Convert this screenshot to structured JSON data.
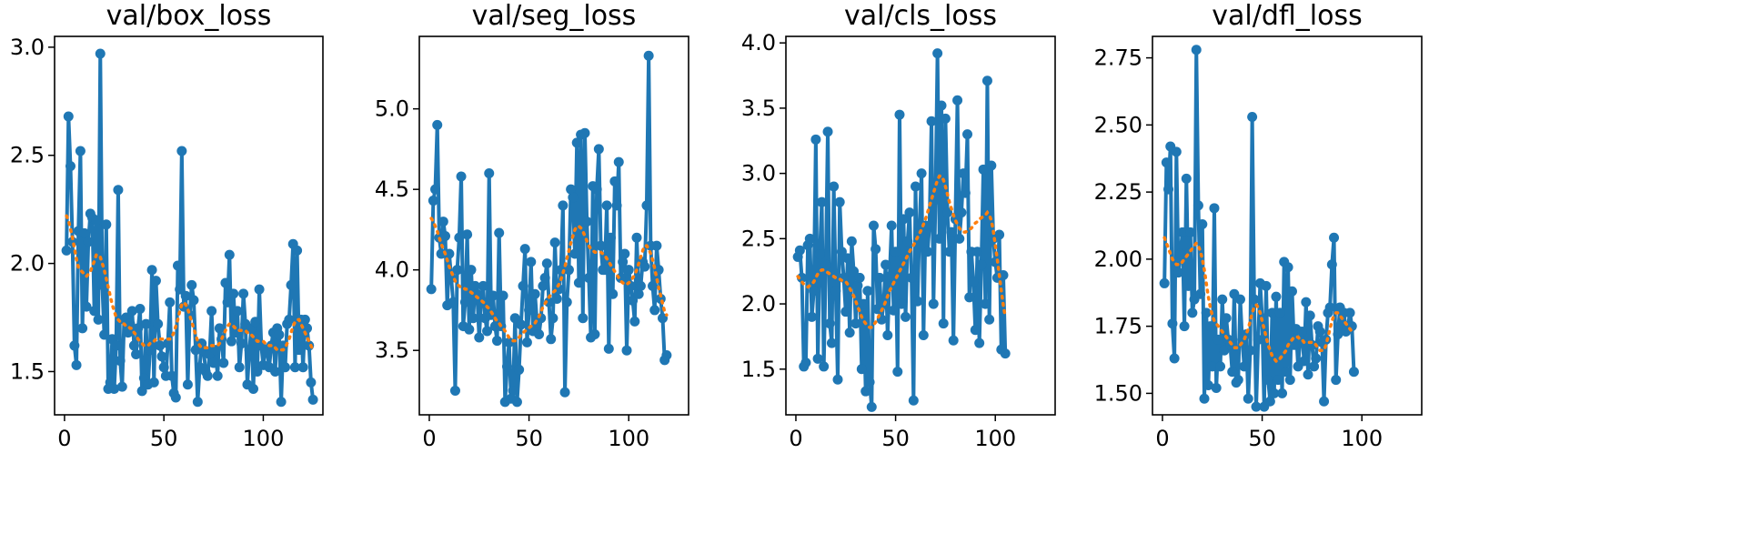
{
  "colors": {
    "series": "#1f77b4",
    "smooth": "#ff7f0e",
    "axis": "#000000"
  },
  "chart_data": [
    {
      "type": "line",
      "title": "val/box_loss",
      "xlim": [
        -5,
        130
      ],
      "ylim": [
        1.3,
        3.05
      ],
      "xticks": [
        0,
        50,
        100
      ],
      "yticks": [
        1.5,
        2.0,
        2.5,
        3.0
      ],
      "ytick_labels": [
        "1.5",
        "2.0",
        "2.5",
        "3.0"
      ],
      "series": [
        {
          "name": "results",
          "marker": "o",
          "values": [
            2.06,
            2.68,
            2.45,
            2.1,
            1.62,
            1.53,
            2.15,
            2.52,
            1.7,
            2.14,
            1.8,
            2.1,
            2.23,
            2.21,
            1.78,
            2.2,
            1.74,
            2.97,
            1.9,
            1.67,
            2.18,
            1.42,
            1.45,
            1.65,
            1.42,
            1.62,
            2.34,
            1.55,
            1.43,
            1.74,
            1.75,
            1.68,
            1.72,
            1.78,
            1.62,
            1.58,
            1.7,
            1.79,
            1.41,
            1.47,
            1.72,
            1.44,
            1.6,
            1.97,
            1.45,
            1.92,
            1.72,
            1.62,
            1.57,
            1.52,
            1.48,
            1.63,
            1.82,
            1.48,
            1.4,
            1.38,
            1.99,
            1.88,
            2.52,
            1.8,
            1.85,
            1.44,
            1.76,
            1.9,
            1.83,
            1.6,
            1.36,
            1.52,
            1.63,
            1.6,
            1.5,
            1.48,
            1.58,
            1.78,
            1.54,
            1.6,
            1.48,
            1.7,
            1.65,
            1.54,
            1.91,
            1.82,
            2.04,
            1.64,
            1.86,
            1.68,
            1.78,
            1.52,
            1.63,
            1.86,
            1.72,
            1.44,
            1.6,
            1.7,
            1.42,
            1.73,
            1.5,
            1.88,
            1.62,
            1.53,
            1.6,
            1.59,
            1.52,
            1.62,
            1.68,
            1.5,
            1.7,
            1.67,
            1.36,
            1.62,
            1.52,
            1.72,
            1.74,
            1.9,
            2.09,
            1.52,
            2.06,
            1.6,
            1.74,
            1.52,
            1.74,
            1.7,
            1.62,
            1.45,
            1.37
          ]
        },
        {
          "name": "smooth",
          "style": "dotted",
          "values": [
            2.22,
            2.2,
            2.16,
            2.12,
            2.07,
            2.02,
            1.98,
            1.97,
            1.96,
            1.95,
            1.94,
            1.95,
            1.96,
            1.99,
            2.01,
            2.04,
            2.04,
            2.03,
            2.0,
            1.97,
            1.93,
            1.89,
            1.85,
            1.81,
            1.78,
            1.75,
            1.74,
            1.73,
            1.72,
            1.72,
            1.71,
            1.71,
            1.7,
            1.7,
            1.68,
            1.67,
            1.65,
            1.64,
            1.63,
            1.62,
            1.62,
            1.62,
            1.63,
            1.64,
            1.64,
            1.65,
            1.65,
            1.65,
            1.65,
            1.65,
            1.65,
            1.65,
            1.65,
            1.66,
            1.68,
            1.71,
            1.74,
            1.78,
            1.81,
            1.82,
            1.81,
            1.79,
            1.76,
            1.73,
            1.7,
            1.67,
            1.64,
            1.62,
            1.61,
            1.61,
            1.61,
            1.61,
            1.61,
            1.62,
            1.62,
            1.62,
            1.62,
            1.63,
            1.65,
            1.67,
            1.69,
            1.71,
            1.72,
            1.72,
            1.71,
            1.7,
            1.7,
            1.69,
            1.69,
            1.69,
            1.69,
            1.68,
            1.68,
            1.67,
            1.66,
            1.65,
            1.64,
            1.64,
            1.64,
            1.64,
            1.63,
            1.63,
            1.62,
            1.62,
            1.61,
            1.61,
            1.6,
            1.6,
            1.6,
            1.6,
            1.61,
            1.63,
            1.65,
            1.68,
            1.71,
            1.73,
            1.74,
            1.74,
            1.72,
            1.7,
            1.68,
            1.66,
            1.64,
            1.62,
            1.6
          ]
        }
      ]
    },
    {
      "type": "line",
      "title": "val/seg_loss",
      "xlim": [
        -5,
        130
      ],
      "ylim": [
        3.1,
        5.45
      ],
      "xticks": [
        0,
        50,
        100
      ],
      "yticks": [
        3.5,
        4.0,
        4.5,
        5.0
      ],
      "ytick_labels": [
        "3.5",
        "4.0",
        "4.5",
        "5.0"
      ],
      "series": [
        {
          "name": "results",
          "marker": "o",
          "values": [
            3.88,
            4.43,
            4.5,
            4.9,
            4.2,
            4.1,
            4.3,
            4.21,
            3.78,
            4.1,
            3.95,
            3.8,
            3.25,
            4.0,
            4.2,
            4.58,
            3.65,
            3.8,
            4.22,
            3.63,
            4.0,
            3.7,
            3.9,
            3.85,
            3.58,
            3.8,
            3.9,
            3.7,
            3.62,
            4.6,
            3.72,
            3.84,
            3.65,
            3.56,
            4.23,
            3.65,
            3.84,
            3.18,
            3.4,
            3.55,
            3.2,
            3.25,
            3.7,
            3.18,
            3.38,
            3.66,
            3.9,
            4.13,
            3.55,
            3.75,
            4.05,
            3.62,
            3.85,
            3.67,
            3.6,
            3.7,
            3.9,
            3.95,
            4.04,
            3.8,
            3.57,
            3.7,
            4.17,
            3.82,
            3.88,
            4.0,
            4.4,
            3.24,
            3.8,
            4.0,
            4.5,
            4.45,
            4.1,
            4.79,
            3.92,
            4.84,
            3.7,
            4.85,
            4.3,
            3.95,
            3.58,
            4.52,
            3.6,
            4.5,
            4.75,
            4.15,
            4.0,
            4.0,
            4.4,
            3.51,
            4.2,
            3.85,
            4.55,
            4.4,
            4.67,
            3.95,
            4.05,
            4.1,
            3.5,
            4.0,
            3.9,
            3.81,
            3.68,
            4.2,
            3.85,
            3.9,
            4.05,
            4.02,
            4.4,
            5.33,
            4.15,
            3.9,
            3.75,
            4.15,
            4.0,
            3.82,
            3.7,
            3.44,
            3.47
          ]
        },
        {
          "name": "smooth",
          "style": "dotted",
          "values": [
            4.32,
            4.3,
            4.27,
            4.24,
            4.2,
            4.16,
            4.13,
            4.1,
            4.06,
            4.02,
            3.99,
            3.96,
            3.93,
            3.91,
            3.9,
            3.89,
            3.89,
            3.88,
            3.88,
            3.87,
            3.86,
            3.85,
            3.84,
            3.83,
            3.82,
            3.81,
            3.8,
            3.79,
            3.77,
            3.76,
            3.74,
            3.72,
            3.7,
            3.68,
            3.67,
            3.65,
            3.64,
            3.62,
            3.6,
            3.58,
            3.57,
            3.56,
            3.56,
            3.57,
            3.58,
            3.6,
            3.61,
            3.62,
            3.63,
            3.64,
            3.65,
            3.66,
            3.67,
            3.69,
            3.71,
            3.74,
            3.77,
            3.79,
            3.81,
            3.83,
            3.85,
            3.86,
            3.87,
            3.89,
            3.91,
            3.94,
            3.98,
            4.02,
            4.07,
            4.12,
            4.17,
            4.21,
            4.25,
            4.27,
            4.27,
            4.26,
            4.24,
            4.21,
            4.18,
            4.15,
            4.13,
            4.12,
            4.11,
            4.11,
            4.11,
            4.11,
            4.1,
            4.09,
            4.07,
            4.05,
            4.03,
            4.01,
            3.99,
            3.97,
            3.95,
            3.93,
            3.92,
            3.91,
            3.91,
            3.92,
            3.93,
            3.95,
            3.97,
            4.0,
            4.04,
            4.08,
            4.12,
            4.15,
            4.15,
            4.13,
            4.1,
            4.06,
            4.01,
            3.95,
            3.89,
            3.84,
            3.79,
            3.74,
            3.72
          ]
        }
      ]
    },
    {
      "type": "line",
      "title": "val/cls_loss",
      "xlim": [
        -5,
        130
      ],
      "ylim": [
        1.15,
        4.05
      ],
      "xticks": [
        0,
        50,
        100
      ],
      "yticks": [
        1.5,
        2.0,
        2.5,
        3.0,
        3.5,
        4.0
      ],
      "ytick_labels": [
        "1.5",
        "2.0",
        "2.5",
        "3.0",
        "3.5",
        "4.0"
      ],
      "series": [
        {
          "name": "results",
          "marker": "o",
          "values": [
            2.36,
            2.41,
            2.2,
            1.52,
            1.55,
            2.45,
            2.5,
            1.9,
            2.1,
            3.26,
            1.58,
            2.38,
            2.78,
            1.52,
            2.3,
            3.32,
            1.85,
            1.7,
            2.9,
            2.1,
            1.42,
            2.78,
            2.4,
            2.2,
            1.94,
            2.35,
            1.78,
            2.48,
            2.25,
            1.85,
            2.14,
            2.2,
            1.5,
            2.0,
            1.33,
            2.1,
            1.4,
            1.21,
            2.6,
            2.42,
            1.96,
            2.2,
            1.88,
            2.0,
            2.3,
            1.76,
            2.21,
            2.6,
            1.95,
            2.4,
            1.48,
            3.45,
            2.0,
            2.65,
            1.9,
            2.48,
            2.7,
            2.2,
            1.26,
            2.9,
            2.02,
            2.6,
            3.0,
            1.76,
            2.6,
            2.4,
            2.6,
            3.4,
            2.0,
            2.8,
            3.92,
            2.5,
            3.52,
            1.85,
            3.42,
            2.7,
            2.4,
            2.55,
            1.72,
            2.65,
            3.56,
            2.5,
            2.7,
            3.0,
            2.85,
            3.3,
            2.05,
            2.4,
            2.17,
            1.8,
            2.4,
            1.7,
            2.3,
            3.03,
            2.0,
            3.71,
            1.88,
            3.06,
            2.5,
            2.32,
            2.2,
            2.53,
            1.65,
            2.22,
            1.62
          ]
        },
        {
          "name": "smooth",
          "style": "dotted",
          "values": [
            2.21,
            2.19,
            2.17,
            2.15,
            2.14,
            2.13,
            2.14,
            2.15,
            2.17,
            2.2,
            2.23,
            2.25,
            2.26,
            2.26,
            2.25,
            2.24,
            2.23,
            2.22,
            2.21,
            2.2,
            2.19,
            2.19,
            2.18,
            2.18,
            2.17,
            2.15,
            2.12,
            2.09,
            2.06,
            2.02,
            1.98,
            1.94,
            1.9,
            1.87,
            1.85,
            1.83,
            1.82,
            1.82,
            1.84,
            1.86,
            1.89,
            1.92,
            1.95,
            1.98,
            2.02,
            2.06,
            2.1,
            2.13,
            2.16,
            2.19,
            2.22,
            2.25,
            2.28,
            2.31,
            2.34,
            2.37,
            2.4,
            2.43,
            2.45,
            2.48,
            2.51,
            2.54,
            2.57,
            2.61,
            2.65,
            2.7,
            2.75,
            2.8,
            2.85,
            2.9,
            2.95,
            2.98,
            2.98,
            2.95,
            2.9,
            2.84,
            2.78,
            2.73,
            2.68,
            2.64,
            2.61,
            2.58,
            2.56,
            2.55,
            2.55,
            2.56,
            2.57,
            2.58,
            2.6,
            2.62,
            2.63,
            2.65,
            2.66,
            2.67,
            2.68,
            2.7,
            2.68,
            2.64,
            2.56,
            2.45,
            2.34,
            2.22,
            2.1,
            1.99,
            1.9
          ]
        }
      ]
    },
    {
      "type": "line",
      "title": "val/dfl_loss",
      "xlim": [
        -5,
        130
      ],
      "ylim": [
        1.42,
        2.83
      ],
      "xticks": [
        0,
        50,
        100
      ],
      "yticks": [
        1.5,
        1.75,
        2.0,
        2.25,
        2.5,
        2.75
      ],
      "ytick_labels": [
        "1.50",
        "1.75",
        "2.00",
        "2.25",
        "2.50",
        "2.75"
      ],
      "series": [
        {
          "name": "results",
          "marker": "o",
          "values": [
            1.91,
            2.36,
            2.26,
            2.42,
            1.76,
            1.63,
            2.4,
            1.95,
            2.02,
            2.1,
            1.75,
            2.3,
            1.9,
            2.1,
            1.8,
            1.85,
            2.78,
            2.2,
            1.87,
            2.13,
            1.48,
            1.8,
            1.53,
            1.75,
            1.6,
            2.19,
            1.52,
            1.7,
            1.6,
            1.85,
            1.66,
            1.78,
            1.7,
            1.68,
            1.58,
            1.87,
            1.54,
            1.55,
            1.85,
            1.7,
            1.6,
            1.72,
            1.48,
            1.66,
            2.53,
            1.85,
            1.45,
            1.7,
            1.91,
            1.78,
            1.45,
            1.9,
            1.55,
            1.47,
            1.8,
            1.5,
            1.86,
            1.55,
            1.8,
            1.5,
            1.99,
            1.58,
            1.97,
            1.55,
            1.88,
            1.68,
            1.74,
            1.6,
            1.7,
            1.73,
            1.62,
            1.84,
            1.57,
            1.79,
            1.68,
            1.6,
            1.63,
            1.75,
            1.73,
            1.69,
            1.47,
            1.7,
            1.8,
            1.82,
            1.98,
            2.08,
            1.55,
            1.72,
            1.82,
            1.75,
            1.8,
            1.73,
            1.75,
            1.8,
            1.75,
            1.58
          ]
        },
        {
          "name": "smooth",
          "style": "dotted",
          "values": [
            2.08,
            2.06,
            2.04,
            2.02,
            2.0,
            1.99,
            1.98,
            1.98,
            1.98,
            1.99,
            2.0,
            2.01,
            2.02,
            2.03,
            2.04,
            2.05,
            2.06,
            2.05,
            2.03,
            2.0,
            1.96,
            1.91,
            1.86,
            1.82,
            1.79,
            1.77,
            1.76,
            1.75,
            1.74,
            1.73,
            1.72,
            1.71,
            1.7,
            1.69,
            1.68,
            1.67,
            1.67,
            1.67,
            1.68,
            1.69,
            1.7,
            1.72,
            1.74,
            1.77,
            1.8,
            1.82,
            1.83,
            1.82,
            1.8,
            1.77,
            1.74,
            1.71,
            1.68,
            1.66,
            1.64,
            1.63,
            1.62,
            1.62,
            1.63,
            1.64,
            1.65,
            1.66,
            1.68,
            1.69,
            1.7,
            1.71,
            1.71,
            1.71,
            1.7,
            1.7,
            1.69,
            1.69,
            1.69,
            1.69,
            1.69,
            1.69,
            1.68,
            1.67,
            1.66,
            1.66,
            1.66,
            1.68,
            1.71,
            1.74,
            1.77,
            1.79,
            1.8,
            1.8,
            1.79,
            1.78,
            1.77,
            1.76,
            1.75,
            1.74,
            1.73,
            1.72
          ]
        }
      ]
    }
  ]
}
